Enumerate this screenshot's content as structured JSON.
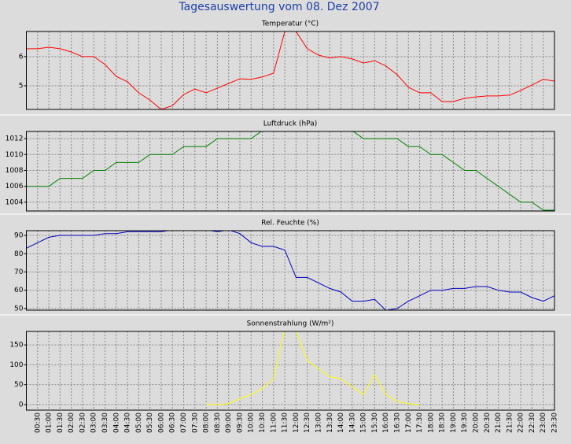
{
  "title": "Tagesauswertung vom 08. Dez 2007",
  "chart_data": [
    {
      "type": "line",
      "title": "Temperatur (°C)",
      "color": "#ff0000",
      "grid": true,
      "ylim": [
        4.19,
        6.86
      ],
      "yticks": [
        5,
        6
      ],
      "values": [
        6.27,
        6.27,
        6.32,
        6.27,
        6.16,
        6.0,
        6.0,
        5.73,
        5.32,
        5.14,
        4.76,
        4.51,
        4.19,
        4.32,
        4.7,
        4.89,
        4.76,
        4.92,
        5.08,
        5.24,
        5.22,
        5.3,
        5.43,
        6.86,
        6.86,
        6.27,
        6.05,
        5.95,
        6.0,
        5.92,
        5.78,
        5.86,
        5.68,
        5.38,
        4.95,
        4.76,
        4.76,
        4.46,
        4.46,
        4.57,
        4.62,
        4.65,
        4.65,
        4.68,
        4.84,
        5.03,
        5.22,
        5.16
      ]
    },
    {
      "type": "line",
      "title": "Luftdruck (hPa)",
      "color": "#008000",
      "grid": true,
      "ylim": [
        1002.9,
        1012.9
      ],
      "yticks": [
        1004,
        1006,
        1008,
        1010,
        1012
      ],
      "values": [
        1006,
        1006,
        1006,
        1007,
        1007,
        1007,
        1008,
        1008,
        1009,
        1009,
        1009,
        1010,
        1010,
        1010,
        1011,
        1011,
        1011,
        1012,
        1012,
        1012,
        1012,
        1013,
        1013,
        1013,
        1013,
        1013,
        1013,
        1013,
        1013,
        1013,
        1012,
        1012,
        1012,
        1012,
        1011,
        1011,
        1010,
        1010,
        1009,
        1008,
        1008,
        1007,
        1006,
        1005,
        1004,
        1004,
        1003,
        1003
      ]
    },
    {
      "type": "line",
      "title": "Rel. Feuchte (%)",
      "color": "#0000c0",
      "grid": true,
      "ylim": [
        49.1,
        92.6
      ],
      "yticks": [
        50,
        60,
        70,
        80,
        90
      ],
      "values": [
        83,
        86,
        89,
        90,
        90,
        90,
        90,
        91,
        91,
        92,
        92,
        92,
        92,
        93,
        93,
        93,
        93,
        92,
        93,
        91,
        86,
        84,
        84,
        82,
        67,
        67,
        64,
        61,
        59,
        54,
        54,
        55,
        49,
        50,
        54,
        57,
        60,
        60,
        61,
        61,
        62,
        62,
        60,
        59,
        59,
        56,
        54,
        57
      ]
    },
    {
      "type": "line",
      "title": "Sonnenstrahlung (W/m²)",
      "color": "#ffff00",
      "grid": true,
      "ylim": [
        -14,
        184
      ],
      "yticks": [
        0,
        50,
        100,
        150
      ],
      "values": [
        null,
        null,
        null,
        null,
        null,
        null,
        null,
        null,
        null,
        null,
        null,
        null,
        null,
        null,
        null,
        null,
        0,
        0,
        2,
        15,
        25,
        40,
        65,
        190,
        185,
        110,
        90,
        70,
        65,
        45,
        25,
        75,
        25,
        8,
        2,
        0,
        null,
        null,
        null,
        null,
        null,
        null,
        null,
        null,
        null,
        null,
        null,
        null
      ],
      "categories": [
        null,
        "00:30",
        "01:00",
        "01:30",
        "02:00",
        "02:30",
        "03:00",
        "03:30",
        "04:00",
        "04:30",
        "05:00",
        "05:30",
        "06:00",
        "06:30",
        "07:00",
        "07:30",
        "08:00",
        "08:30",
        "09:00",
        "09:30",
        "10:00",
        "10:30",
        "11:00",
        "11:30",
        "12:00",
        "12:30",
        "13:00",
        "13:30",
        "14:00",
        "14:30",
        "15:00",
        "15:30",
        "16:00",
        "16:30",
        "17:00",
        "17:30",
        "18:00",
        "18:30",
        "19:00",
        "19:30",
        "20:00",
        "20:30",
        "21:00",
        "21:30",
        "22:00",
        "22:30",
        "23:00",
        "23:30"
      ]
    }
  ]
}
